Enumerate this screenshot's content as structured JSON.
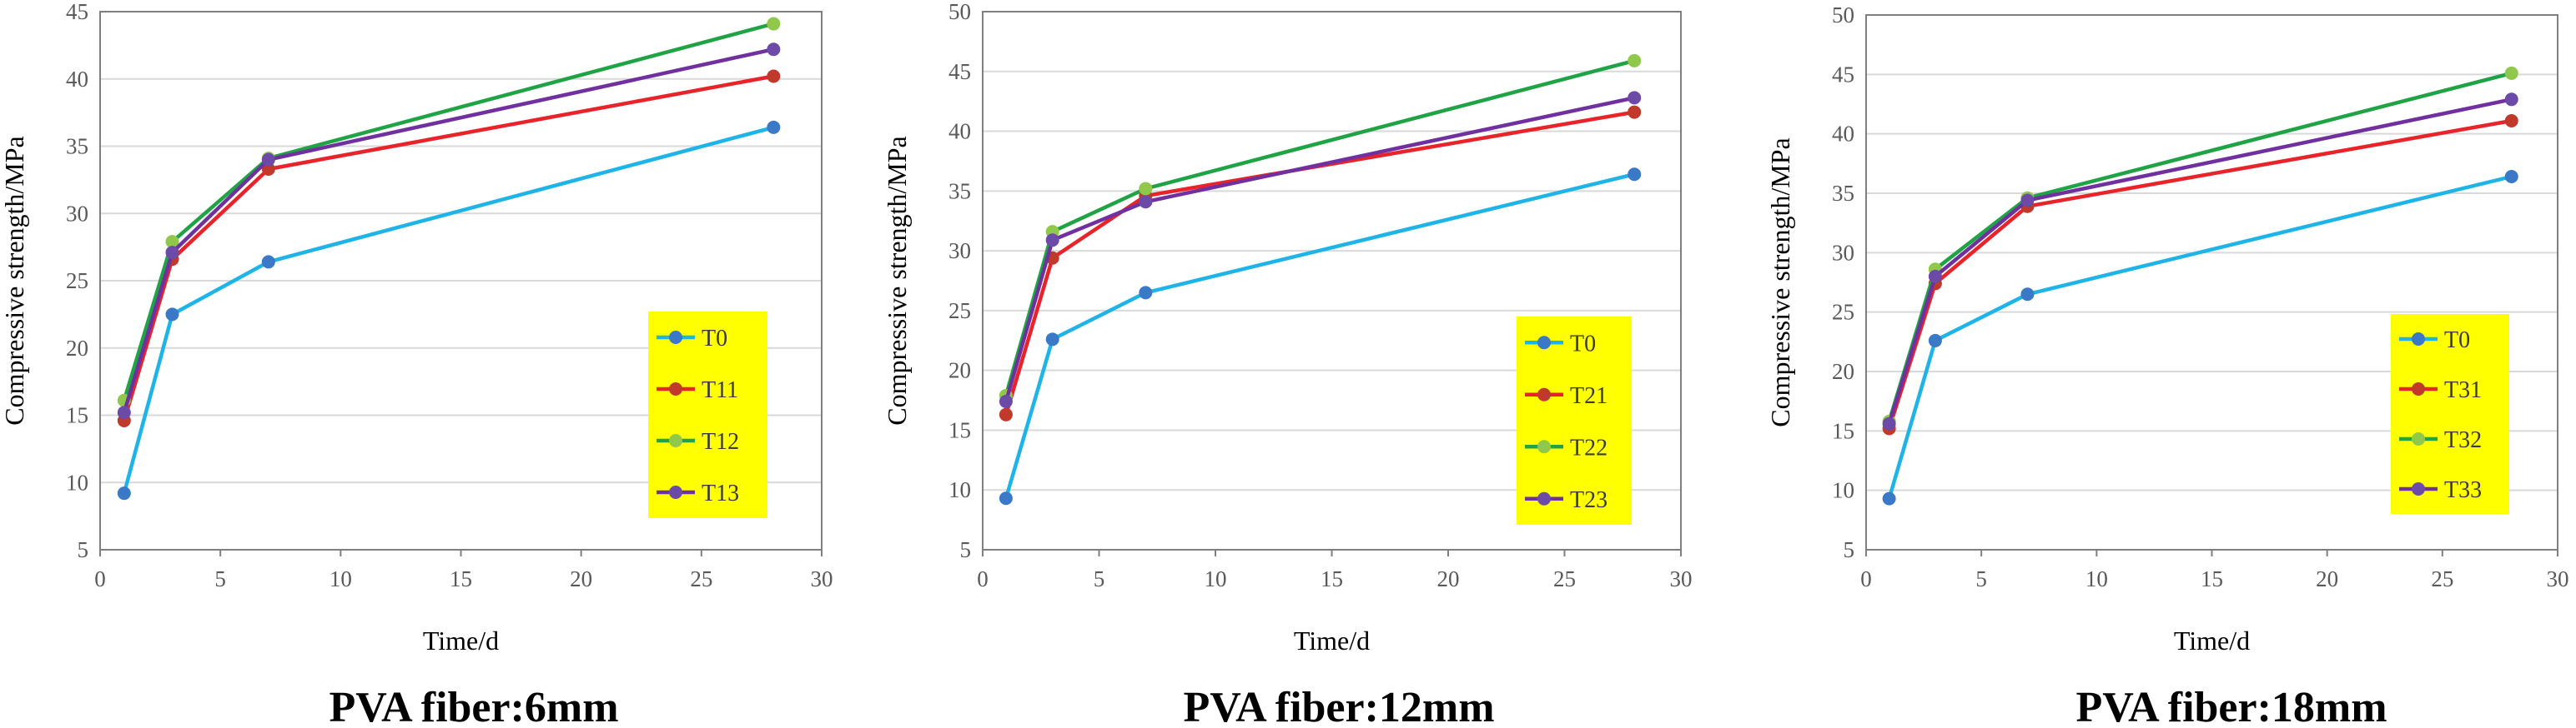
{
  "chart_data": [
    {
      "type": "line",
      "caption": "PVA fiber:6mm",
      "xlabel": "Time/d",
      "ylabel": "Compressive strength/MPa",
      "xlim": [
        0,
        30
      ],
      "ylim": [
        5,
        45
      ],
      "xticks": [
        0,
        5,
        10,
        15,
        20,
        25,
        30
      ],
      "yticks": [
        5,
        10,
        15,
        20,
        25,
        30,
        35,
        40,
        45
      ],
      "grid": "horizontal",
      "legend_position": "right",
      "x": [
        1,
        3,
        7,
        28
      ],
      "series": [
        {
          "name": "T0",
          "color": "#1fb4e8",
          "marker": "#3a78c8",
          "values": [
            9.2,
            22.5,
            26.4,
            36.4
          ]
        },
        {
          "name": "T11",
          "color": "#e8242a",
          "marker": "#c0392b",
          "values": [
            14.6,
            26.6,
            33.3,
            40.2
          ]
        },
        {
          "name": "T12",
          "color": "#1fa345",
          "marker": "#8fc84a",
          "values": [
            16.1,
            27.9,
            34.1,
            44.1
          ]
        },
        {
          "name": "T13",
          "color": "#7030a0",
          "marker": "#6b4aa8",
          "values": [
            15.2,
            27.1,
            34.0,
            42.2
          ]
        }
      ]
    },
    {
      "type": "line",
      "caption": "PVA fiber:12mm",
      "xlabel": "Time/d",
      "ylabel": "Compressive strength/MPa",
      "xlim": [
        0,
        30
      ],
      "ylim": [
        5,
        50
      ],
      "xticks": [
        0,
        5,
        10,
        15,
        20,
        25,
        30
      ],
      "yticks": [
        5,
        10,
        15,
        20,
        25,
        30,
        35,
        40,
        45,
        50
      ],
      "grid": "horizontal",
      "legend_position": "right",
      "x": [
        1,
        3,
        7,
        28
      ],
      "series": [
        {
          "name": "T0",
          "color": "#1fb4e8",
          "marker": "#3a78c8",
          "values": [
            9.3,
            22.6,
            26.5,
            36.4
          ]
        },
        {
          "name": "T21",
          "color": "#e8242a",
          "marker": "#c0392b",
          "values": [
            16.3,
            29.4,
            34.6,
            41.6
          ]
        },
        {
          "name": "T22",
          "color": "#1fa345",
          "marker": "#8fc84a",
          "values": [
            17.9,
            31.6,
            35.2,
            45.9
          ]
        },
        {
          "name": "T23",
          "color": "#7030a0",
          "marker": "#6b4aa8",
          "values": [
            17.4,
            30.9,
            34.1,
            42.8
          ]
        }
      ]
    },
    {
      "type": "line",
      "caption": "PVA fiber:18mm",
      "xlabel": "Time/d",
      "ylabel": "Compressive strength/MPa",
      "xlim": [
        0,
        30
      ],
      "ylim": [
        5,
        50
      ],
      "xticks": [
        0,
        5,
        10,
        15,
        20,
        25,
        30
      ],
      "yticks": [
        5,
        10,
        15,
        20,
        25,
        30,
        35,
        40,
        45,
        50
      ],
      "grid": "horizontal",
      "legend_position": "right",
      "x": [
        1,
        3,
        7,
        28
      ],
      "series": [
        {
          "name": "T0",
          "color": "#1fb4e8",
          "marker": "#3a78c8",
          "values": [
            9.3,
            22.6,
            26.5,
            36.4
          ]
        },
        {
          "name": "T31",
          "color": "#e8242a",
          "marker": "#c0392b",
          "values": [
            15.2,
            27.4,
            33.9,
            41.1
          ]
        },
        {
          "name": "T32",
          "color": "#1fa345",
          "marker": "#8fc84a",
          "values": [
            15.8,
            28.6,
            34.6,
            45.1
          ]
        },
        {
          "name": "T33",
          "color": "#7030a0",
          "marker": "#6b4aa8",
          "values": [
            15.6,
            28.0,
            34.4,
            42.9
          ]
        }
      ]
    }
  ],
  "legend_bg": "#ffff00",
  "gridline_color": "#d9d9d9",
  "axis_color": "#7f7f7f"
}
